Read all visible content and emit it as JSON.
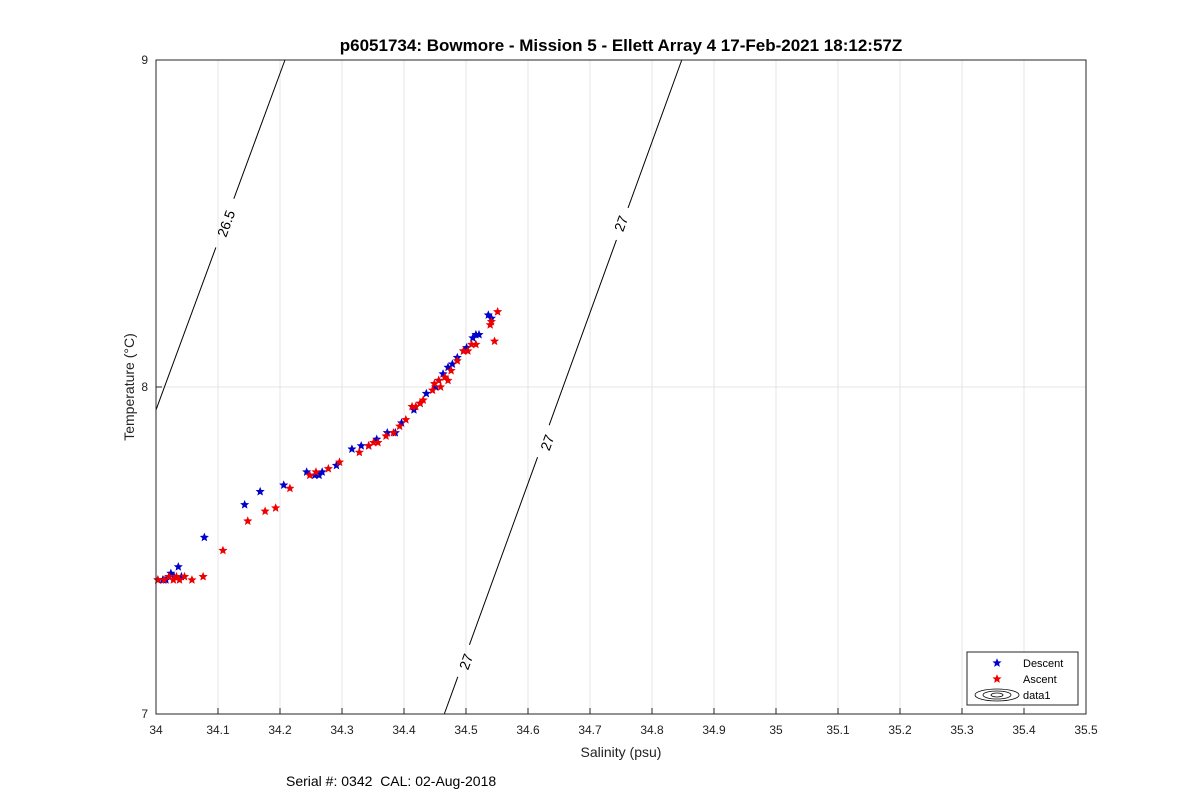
{
  "chart_data": {
    "type": "scatter",
    "title": "p6051734: Bowmore - Mission 5 - Ellett Array 4 17-Feb-2021 18:12:57Z",
    "xlabel": "Salinity (psu)",
    "ylabel": "Temperature (°C)",
    "xlim": [
      34,
      35.5
    ],
    "ylim": [
      7,
      9
    ],
    "xticks": [
      "34",
      "34.1",
      "34.2",
      "34.3",
      "34.4",
      "34.5",
      "34.6",
      "34.7",
      "34.8",
      "34.9",
      "35",
      "35.1",
      "35.2",
      "35.3",
      "35.4",
      "35.5"
    ],
    "yticks": [
      "7",
      "8",
      "9"
    ],
    "grid": true,
    "legend_position": "bottom-right",
    "legend": [
      "Descent",
      "Ascent",
      "data1"
    ],
    "series": [
      {
        "name": "Descent",
        "color": "#0000cc",
        "marker": "pentagram",
        "points": [
          [
            34.003,
            7.41
          ],
          [
            34.011,
            7.41
          ],
          [
            34.016,
            7.41
          ],
          [
            34.021,
            7.42
          ],
          [
            34.024,
            7.43
          ],
          [
            34.029,
            7.42
          ],
          [
            34.036,
            7.45
          ],
          [
            34.041,
            7.42
          ],
          [
            34.078,
            7.54
          ],
          [
            34.143,
            7.64
          ],
          [
            34.168,
            7.68
          ],
          [
            34.206,
            7.7
          ],
          [
            34.243,
            7.74
          ],
          [
            34.256,
            7.73
          ],
          [
            34.263,
            7.73
          ],
          [
            34.268,
            7.74
          ],
          [
            34.291,
            7.76
          ],
          [
            34.316,
            7.81
          ],
          [
            34.331,
            7.82
          ],
          [
            34.343,
            7.82
          ],
          [
            34.356,
            7.84
          ],
          [
            34.373,
            7.86
          ],
          [
            34.386,
            7.86
          ],
          [
            34.396,
            7.89
          ],
          [
            34.416,
            7.93
          ],
          [
            34.426,
            7.95
          ],
          [
            34.436,
            7.98
          ],
          [
            34.451,
            8.0
          ],
          [
            34.456,
            8.02
          ],
          [
            34.463,
            8.04
          ],
          [
            34.471,
            8.06
          ],
          [
            34.478,
            8.07
          ],
          [
            34.486,
            8.09
          ],
          [
            34.496,
            8.11
          ],
          [
            34.501,
            8.12
          ],
          [
            34.511,
            8.15
          ],
          [
            34.516,
            8.16
          ],
          [
            34.521,
            8.16
          ],
          [
            34.536,
            8.22
          ],
          [
            34.541,
            8.21
          ]
        ]
      },
      {
        "name": "Ascent",
        "color": "#ee0000",
        "marker": "pentagram",
        "points": [
          [
            34.003,
            7.41
          ],
          [
            34.013,
            7.41
          ],
          [
            34.021,
            7.42
          ],
          [
            34.028,
            7.41
          ],
          [
            34.033,
            7.42
          ],
          [
            34.038,
            7.41
          ],
          [
            34.046,
            7.42
          ],
          [
            34.058,
            7.41
          ],
          [
            34.076,
            7.42
          ],
          [
            34.108,
            7.5
          ],
          [
            34.148,
            7.59
          ],
          [
            34.176,
            7.62
          ],
          [
            34.193,
            7.63
          ],
          [
            34.216,
            7.69
          ],
          [
            34.248,
            7.73
          ],
          [
            34.258,
            7.74
          ],
          [
            34.278,
            7.75
          ],
          [
            34.296,
            7.77
          ],
          [
            34.328,
            7.8
          ],
          [
            34.343,
            7.82
          ],
          [
            34.351,
            7.83
          ],
          [
            34.358,
            7.83
          ],
          [
            34.371,
            7.85
          ],
          [
            34.383,
            7.86
          ],
          [
            34.393,
            7.88
          ],
          [
            34.403,
            7.9
          ],
          [
            34.413,
            7.94
          ],
          [
            34.419,
            7.94
          ],
          [
            34.426,
            7.95
          ],
          [
            34.431,
            7.96
          ],
          [
            34.446,
            7.99
          ],
          [
            34.449,
            8.01
          ],
          [
            34.456,
            8.02
          ],
          [
            34.459,
            8.0
          ],
          [
            34.466,
            8.03
          ],
          [
            34.471,
            8.02
          ],
          [
            34.476,
            8.05
          ],
          [
            34.486,
            8.08
          ],
          [
            34.496,
            8.11
          ],
          [
            34.503,
            8.11
          ],
          [
            34.509,
            8.13
          ],
          [
            34.516,
            8.13
          ],
          [
            34.539,
            8.19
          ],
          [
            34.541,
            8.2
          ],
          [
            34.546,
            8.14
          ],
          [
            34.551,
            8.23
          ]
        ]
      }
    ],
    "isopycnals": [
      {
        "line": [
          [
            34.0,
            7.93
          ],
          [
            34.208,
            9.0
          ]
        ],
        "labels": [
          {
            "text": "26.5",
            "at": [
              34.113,
              8.5
            ]
          }
        ]
      },
      {
        "line": [
          [
            34.465,
            7.0
          ],
          [
            34.848,
            9.0
          ]
        ],
        "labels": [
          {
            "text": "27",
            "at": [
              34.5,
              7.16
            ]
          },
          {
            "text": "27",
            "at": [
              34.631,
              7.83
            ]
          },
          {
            "text": "27",
            "at": [
              34.75,
              8.5
            ]
          }
        ]
      }
    ]
  },
  "footer": {
    "serial_label": "Serial #:",
    "serial": "0342",
    "cal_label": "CAL:",
    "cal": "02-Aug-2018"
  }
}
